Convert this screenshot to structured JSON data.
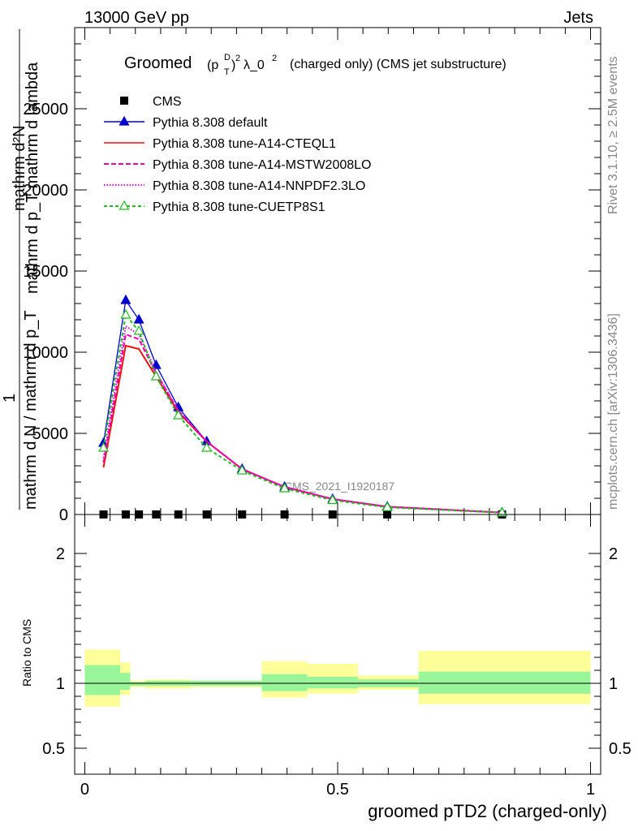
{
  "header": {
    "left": "13000 GeV pp",
    "right": "Jets",
    "title_groomed": "Groomed",
    "title_p": "(p",
    "title_sup_d": "D",
    "title_sub_t": "T",
    "title_close": ")",
    "title_sq": "2",
    "title_lambda": "λ_0",
    "title_rest": "(charged only) (CMS jet substructure)"
  },
  "side_labels": {
    "rivet": "Rivet 3.1.10, ≥ 2.5M events",
    "mcplots": "mcplots.cern.ch [arXiv:1306.3436]"
  },
  "watermark": "CMS_2021_I1920187",
  "colors": {
    "cms": "#000000",
    "default": "#0000cc",
    "cteql1": "#ee1111",
    "mstw": "#ee00aa",
    "nnpdf": "#dd00dd",
    "cuetp": "#22bb22",
    "band_inner": "#99f599",
    "band_outer": "#ffff99"
  },
  "chart_data": [
    {
      "type": "line",
      "panel": "main",
      "title": "Groomed (p_T^D)^2 λ_0^2 (charged only) (CMS jet substructure)",
      "xlabel": "groomed pTD2 (charged-only)",
      "ylabel_line1": "mathrm d²N",
      "ylabel_line2": "mathrm d p_T mathrm d lambda",
      "ylabel_frac_num": "1",
      "ylabel_frac_den": "mathrm d N / mathrm d p_T",
      "xlim": [
        -0.02,
        1.02
      ],
      "ylim": [
        0,
        30000
      ],
      "y_ticks": [
        0,
        5000,
        10000,
        15000,
        20000,
        25000
      ],
      "y_tick_labels": [
        "0",
        "5000",
        "10000",
        "15000",
        "20000",
        "25000"
      ],
      "x": [
        0.037,
        0.081,
        0.107,
        0.141,
        0.185,
        0.241,
        0.311,
        0.395,
        0.49,
        0.598,
        0.825
      ],
      "series": [
        {
          "name": "CMS",
          "key": "cms",
          "marker": "square",
          "values": [
            5,
            5,
            5,
            5,
            5,
            5,
            5,
            5,
            5,
            5,
            5
          ]
        },
        {
          "name": "Pythia 8.308 default",
          "key": "default",
          "marker": "triangle",
          "dash": "",
          "values": [
            4400,
            13200,
            12000,
            9200,
            6600,
            4500,
            2800,
            1700,
            950,
            480,
            120
          ]
        },
        {
          "name": "Pythia 8.308 tune-A14-CTEQL1",
          "key": "cteql1",
          "marker": "none",
          "dash": "",
          "values": [
            2900,
            10400,
            10200,
            8500,
            6300,
            4500,
            2800,
            1700,
            950,
            480,
            120
          ]
        },
        {
          "name": "Pythia 8.308 tune-A14-MSTW2008LO",
          "key": "mstw",
          "marker": "none",
          "dash": "6,3",
          "values": [
            3200,
            11100,
            10800,
            8700,
            6400,
            4500,
            2800,
            1700,
            950,
            480,
            120
          ]
        },
        {
          "name": "Pythia 8.308 tune-A14-NNPDF2.3LO",
          "key": "nnpdf",
          "marker": "none",
          "dash": "1.5,2",
          "values": [
            3500,
            11600,
            11100,
            8800,
            6400,
            4500,
            2800,
            1700,
            950,
            480,
            120
          ]
        },
        {
          "name": "Pythia 8.308 tune-CUETP8S1",
          "key": "cuetp",
          "marker": "open-triangle",
          "dash": "4,3",
          "values": [
            4100,
            12300,
            11300,
            8500,
            6100,
            4100,
            2700,
            1600,
            880,
            440,
            110
          ]
        }
      ],
      "legend_position": "top-left"
    },
    {
      "type": "area",
      "panel": "ratio",
      "ylabel": "Ratio to CMS",
      "xlim": [
        -0.02,
        1.02
      ],
      "ylim": [
        0.3,
        2.3
      ],
      "y_ticks": [
        0.5,
        1,
        2
      ],
      "y_tick_labels": [
        "0.5",
        "1",
        "2"
      ],
      "x_ticks": [
        0,
        0.5,
        1
      ],
      "x_tick_labels": [
        "0",
        "0.5",
        "1"
      ],
      "reference": 1.0,
      "bins": [
        {
          "lo": 0.0,
          "hi": 0.07,
          "inner": [
            0.91,
            1.14
          ],
          "outer": [
            0.82,
            1.26
          ]
        },
        {
          "lo": 0.07,
          "hi": 0.09,
          "inner": [
            0.95,
            1.08
          ],
          "outer": [
            0.91,
            1.16
          ]
        },
        {
          "lo": 0.09,
          "hi": 0.12,
          "inner": [
            0.98,
            1.01
          ],
          "outer": [
            0.97,
            1.02
          ]
        },
        {
          "lo": 0.12,
          "hi": 0.21,
          "inner": [
            0.98,
            1.02
          ],
          "outer": [
            0.96,
            1.03
          ]
        },
        {
          "lo": 0.21,
          "hi": 0.35,
          "inner": [
            0.98,
            1.02
          ],
          "outer": [
            0.97,
            1.02
          ]
        },
        {
          "lo": 0.35,
          "hi": 0.44,
          "inner": [
            0.94,
            1.07
          ],
          "outer": [
            0.89,
            1.17
          ]
        },
        {
          "lo": 0.44,
          "hi": 0.54,
          "inner": [
            0.96,
            1.05
          ],
          "outer": [
            0.92,
            1.15
          ]
        },
        {
          "lo": 0.54,
          "hi": 0.66,
          "inner": [
            0.97,
            1.03
          ],
          "outer": [
            0.95,
            1.06
          ]
        },
        {
          "lo": 0.66,
          "hi": 1.0,
          "inner": [
            0.92,
            1.09
          ],
          "outer": [
            0.84,
            1.25
          ]
        }
      ]
    }
  ]
}
